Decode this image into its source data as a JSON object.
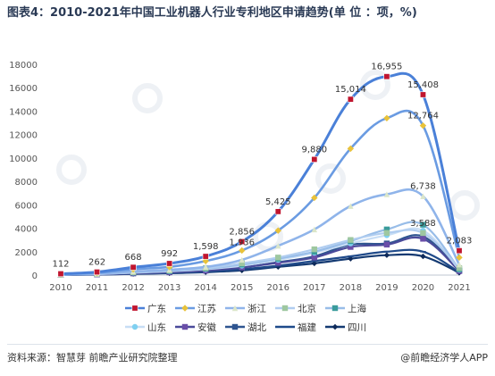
{
  "header": {
    "title": "图表4：2010-2021年中国工业机器人行业专利地区申请趋势(单 位 ：项，%)"
  },
  "footer": {
    "source": "资料来源：智慧芽 前瞻产业研究院整理",
    "brand": "@前瞻经济学人APP"
  },
  "colors": {
    "广东": "#4a80d8",
    "江苏": "#6a9be2",
    "浙江": "#8fb4ea",
    "北京": "#b0cdf0",
    "上海": "#98bde8",
    "山东": "#c7ddf5",
    "安徽": "#4a4a9a",
    "湖北": "#2f5590",
    "福建": "#1f4a8a",
    "四川": "#143a72"
  },
  "chart_data": {
    "type": "line",
    "x": [
      2010,
      2011,
      2012,
      2013,
      2014,
      2015,
      2016,
      2017,
      2018,
      2019,
      2020,
      2021
    ],
    "xlim": [
      2010,
      2021
    ],
    "ylim": [
      0,
      18000
    ],
    "yticks": [
      0,
      2000,
      4000,
      6000,
      8000,
      10000,
      12000,
      14000,
      16000,
      18000
    ],
    "legend_position": "bottom",
    "grid": false,
    "series": [
      {
        "name": "广东",
        "values": [
          112,
          262,
          668,
          992,
          1598,
          2856,
          5425,
          9880,
          15014,
          16955,
          15408,
          2083
        ]
      },
      {
        "name": "江苏",
        "values": [
          70,
          200,
          500,
          700,
          1200,
          2100,
          3800,
          6600,
          10800,
          13400,
          12764,
          1500
        ]
      },
      {
        "name": "浙江",
        "values": [
          40,
          120,
          300,
          450,
          700,
          1300,
          2500,
          3900,
          5900,
          6900,
          6738,
          900
        ]
      },
      {
        "name": "北京",
        "values": [
          40,
          100,
          250,
          400,
          600,
          1000,
          1500,
          2200,
          3000,
          3600,
          3588,
          600
        ]
      },
      {
        "name": "上海",
        "values": [
          30,
          90,
          220,
          350,
          550,
          900,
          1400,
          2000,
          2900,
          3900,
          4300,
          500
        ]
      },
      {
        "name": "山东",
        "values": [
          25,
          80,
          200,
          320,
          500,
          800,
          1300,
          1900,
          2700,
          3400,
          3800,
          450
        ]
      },
      {
        "name": "安徽",
        "values": [
          20,
          60,
          150,
          240,
          380,
          650,
          1050,
          1500,
          2400,
          2600,
          3100,
          350
        ]
      },
      {
        "name": "湖北",
        "values": [
          20,
          60,
          150,
          240,
          380,
          650,
          1100,
          1600,
          2600,
          2700,
          3300,
          350
        ]
      },
      {
        "name": "福建",
        "values": [
          15,
          45,
          110,
          180,
          280,
          500,
          800,
          1200,
          1600,
          2000,
          2000,
          250
        ]
      },
      {
        "name": "四川",
        "values": [
          15,
          40,
          100,
          160,
          250,
          400,
          700,
          1000,
          1400,
          1700,
          1600,
          200
        ]
      }
    ],
    "data_labels": [
      {
        "text": "112",
        "x": 2010,
        "y": 112
      },
      {
        "text": "262",
        "x": 2011,
        "y": 262
      },
      {
        "text": "668",
        "x": 2012,
        "y": 668
      },
      {
        "text": "992",
        "x": 2013,
        "y": 992
      },
      {
        "text": "1,598",
        "x": 2014,
        "y": 1598
      },
      {
        "text": "2,856",
        "x": 2015,
        "y": 2856
      },
      {
        "text": "1,936",
        "x": 2015,
        "y": 1936
      },
      {
        "text": "5,425",
        "x": 2016,
        "y": 5425
      },
      {
        "text": "9,880",
        "x": 2017,
        "y": 9880
      },
      {
        "text": "15,014",
        "x": 2018,
        "y": 15014
      },
      {
        "text": "16,955",
        "x": 2019,
        "y": 16955
      },
      {
        "text": "15,408",
        "x": 2020,
        "y": 15408
      },
      {
        "text": "12,764",
        "x": 2020,
        "y": 12764
      },
      {
        "text": "6,738",
        "x": 2020,
        "y": 6738
      },
      {
        "text": "3,588",
        "x": 2020,
        "y": 3588
      },
      {
        "text": "2,083",
        "x": 2021,
        "y": 2083
      }
    ],
    "legend": [
      [
        "广东",
        "江苏",
        "浙江",
        "北京",
        "上海"
      ],
      [
        "山东",
        "安徽",
        "湖北",
        "福建",
        "四川"
      ]
    ]
  }
}
